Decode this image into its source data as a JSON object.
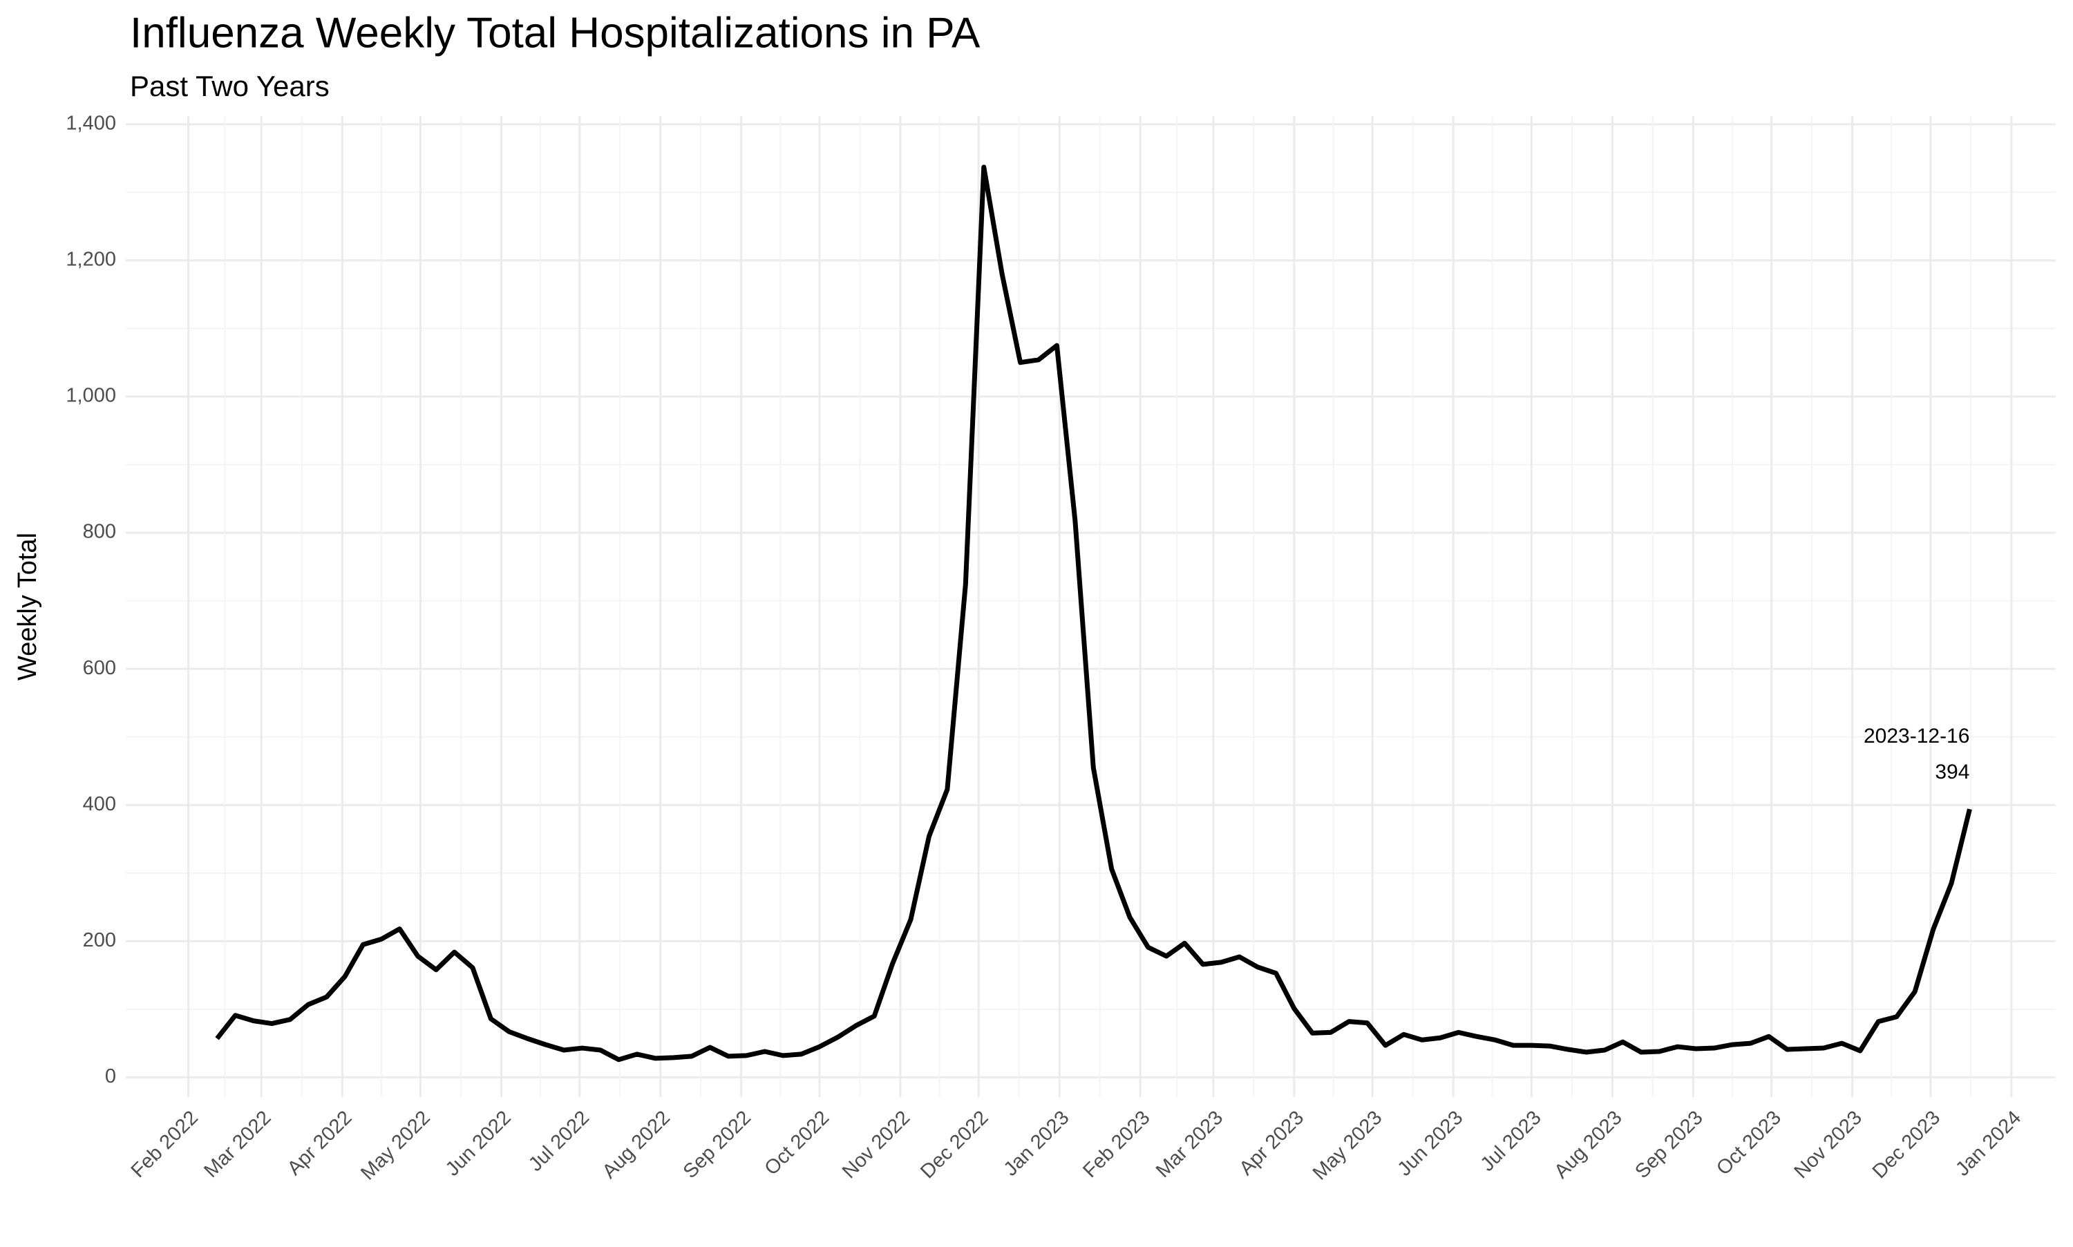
{
  "chart_data": {
    "type": "line",
    "title": "Influenza Weekly Total Hospitalizations in PA",
    "subtitle": "Past Two Years",
    "y_label": "Weekly Total",
    "color": "#000000",
    "grid": true,
    "label_last_point": true,
    "x": [
      "2022-02-12",
      "2022-02-19",
      "2022-02-26",
      "2022-03-05",
      "2022-03-12",
      "2022-03-19",
      "2022-03-26",
      "2022-04-02",
      "2022-04-09",
      "2022-04-16",
      "2022-04-23",
      "2022-04-30",
      "2022-05-07",
      "2022-05-14",
      "2022-05-21",
      "2022-05-28",
      "2022-06-04",
      "2022-06-11",
      "2022-06-18",
      "2022-06-25",
      "2022-07-02",
      "2022-07-09",
      "2022-07-16",
      "2022-07-23",
      "2022-07-30",
      "2022-08-06",
      "2022-08-13",
      "2022-08-20",
      "2022-08-27",
      "2022-09-03",
      "2022-09-10",
      "2022-09-17",
      "2022-09-24",
      "2022-10-01",
      "2022-10-08",
      "2022-10-15",
      "2022-10-22",
      "2022-10-29",
      "2022-11-05",
      "2022-11-12",
      "2022-11-19",
      "2022-11-26",
      "2022-12-03",
      "2022-12-10",
      "2022-12-17",
      "2022-12-24",
      "2022-12-31",
      "2023-01-07",
      "2023-01-14",
      "2023-01-21",
      "2023-01-28",
      "2023-02-04",
      "2023-02-11",
      "2023-02-18",
      "2023-02-25",
      "2023-03-04",
      "2023-03-11",
      "2023-03-18",
      "2023-03-25",
      "2023-04-01",
      "2023-04-08",
      "2023-04-15",
      "2023-04-22",
      "2023-04-29",
      "2023-05-06",
      "2023-05-13",
      "2023-05-20",
      "2023-05-27",
      "2023-06-03",
      "2023-06-10",
      "2023-06-17",
      "2023-06-24",
      "2023-07-01",
      "2023-07-08",
      "2023-07-15",
      "2023-07-22",
      "2023-07-29",
      "2023-08-05",
      "2023-08-12",
      "2023-08-19",
      "2023-08-26",
      "2023-09-02",
      "2023-09-09",
      "2023-09-16",
      "2023-09-23",
      "2023-09-30",
      "2023-10-07",
      "2023-10-14",
      "2023-10-21",
      "2023-10-28",
      "2023-11-04",
      "2023-11-11",
      "2023-11-18",
      "2023-11-25",
      "2023-12-02",
      "2023-12-09",
      "2023-12-16"
    ],
    "values": [
      57,
      91,
      83,
      79,
      85,
      107,
      118,
      148,
      195,
      203,
      218,
      178,
      158,
      184,
      161,
      86,
      67,
      57,
      48,
      40,
      43,
      40,
      26,
      34,
      28,
      29,
      31,
      44,
      31,
      32,
      38,
      32,
      34,
      45,
      59,
      76,
      90,
      167,
      232,
      354,
      423,
      724,
      1337,
      1180,
      1050,
      1054,
      1075,
      818,
      455,
      306,
      235,
      191,
      178,
      197,
      166,
      169,
      177,
      162,
      153,
      101,
      65,
      66,
      82,
      80,
      47,
      63,
      55,
      58,
      66,
      60,
      55,
      47,
      47,
      46,
      41,
      37,
      40,
      52,
      37,
      38,
      45,
      42,
      43,
      48,
      50,
      60,
      41,
      42,
      43,
      50,
      39,
      82,
      89,
      126,
      217,
      285,
      394
    ],
    "xlim": [
      "2022-01-08",
      "2024-01-18"
    ],
    "xticks": [
      {
        "value": "2022-02-01",
        "label": "Feb 2022"
      },
      {
        "value": "2022-03-01",
        "label": "Mar 2022"
      },
      {
        "value": "2022-04-01",
        "label": "Apr 2022"
      },
      {
        "value": "2022-05-01",
        "label": "May 2022"
      },
      {
        "value": "2022-06-01",
        "label": "Jun 2022"
      },
      {
        "value": "2022-07-01",
        "label": "Jul 2022"
      },
      {
        "value": "2022-08-01",
        "label": "Aug 2022"
      },
      {
        "value": "2022-09-01",
        "label": "Sep 2022"
      },
      {
        "value": "2022-10-01",
        "label": "Oct 2022"
      },
      {
        "value": "2022-11-01",
        "label": "Nov 2022"
      },
      {
        "value": "2022-12-01",
        "label": "Dec 2022"
      },
      {
        "value": "2023-01-01",
        "label": "Jan 2023"
      },
      {
        "value": "2023-02-01",
        "label": "Feb 2023"
      },
      {
        "value": "2023-03-01",
        "label": "Mar 2023"
      },
      {
        "value": "2023-04-01",
        "label": "Apr 2023"
      },
      {
        "value": "2023-05-01",
        "label": "May 2023"
      },
      {
        "value": "2023-06-01",
        "label": "Jun 2023"
      },
      {
        "value": "2023-07-01",
        "label": "Jul 2023"
      },
      {
        "value": "2023-08-01",
        "label": "Aug 2023"
      },
      {
        "value": "2023-09-01",
        "label": "Sep 2023"
      },
      {
        "value": "2023-10-01",
        "label": "Oct 2023"
      },
      {
        "value": "2023-11-01",
        "label": "Nov 2023"
      },
      {
        "value": "2023-12-01",
        "label": "Dec 2023"
      },
      {
        "value": "2024-01-01",
        "label": "Jan 2024"
      }
    ],
    "ylim": [
      -29,
      1412
    ],
    "yticks": [
      0,
      200,
      400,
      600,
      800,
      {
        "value": 1000,
        "label": "1,000"
      },
      {
        "value": 1200,
        "label": "1,200"
      },
      {
        "value": 1400,
        "label": "1,400"
      }
    ]
  }
}
